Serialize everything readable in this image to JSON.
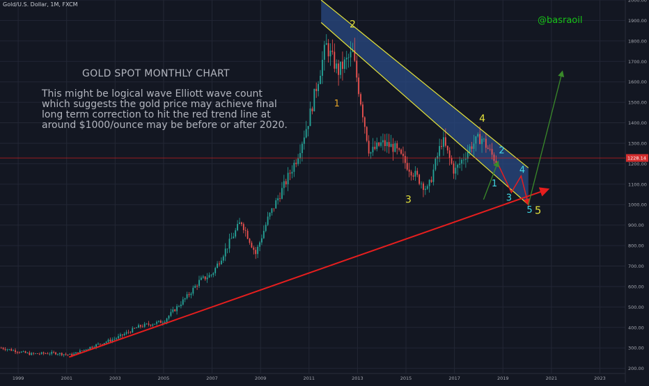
{
  "chart_data": {
    "type": "candlestick",
    "symbol_header": "Gold/U.S. Dollar, 1M, FXCM",
    "title": "GOLD SPOT MONTHLY CHART",
    "annotation_lines": [
      "This might be logical wave Elliott wave count",
      "which suggests the gold price may achieve final",
      "long term correction to hit the red trend line at",
      "around $1000/ounce may be before or after 2020."
    ],
    "watermark": "@basraoil",
    "x_ticks": [
      "1999",
      "2001",
      "2003",
      "2005",
      "2007",
      "2009",
      "2011",
      "2013",
      "2015",
      "2017",
      "2019",
      "2021",
      "2023"
    ],
    "x_tick_years": [
      1999,
      2001,
      2003,
      2005,
      2007,
      2009,
      2011,
      2013,
      2015,
      2017,
      2019,
      2021,
      2023
    ],
    "y_ticks": [
      "2000.00",
      "1900.00",
      "1800.00",
      "1700.00",
      "1600.00",
      "1500.00",
      "1400.00",
      "1300.00",
      "1200.00",
      "1100.00",
      "1000.00",
      "900.00",
      "800.00",
      "700.00",
      "600.00",
      "500.00",
      "400.00",
      "300.00",
      "200.00"
    ],
    "y_tick_values": [
      2000,
      1900,
      1800,
      1700,
      1600,
      1500,
      1400,
      1300,
      1200,
      1100,
      1000,
      900,
      800,
      700,
      600,
      500,
      400,
      300,
      200
    ],
    "ylim": [
      175,
      2000
    ],
    "xlim": [
      1998.25,
      2024.05
    ],
    "price_label": "1228.14",
    "price_value": 1228.14,
    "anchors": [
      {
        "year": 1998.3,
        "price": 300
      },
      {
        "year": 1999.5,
        "price": 270
      },
      {
        "year": 2000.5,
        "price": 275
      },
      {
        "year": 2001.2,
        "price": 265
      },
      {
        "year": 2002.0,
        "price": 305
      },
      {
        "year": 2003.0,
        "price": 345
      },
      {
        "year": 2004.0,
        "price": 405
      },
      {
        "year": 2005.0,
        "price": 430
      },
      {
        "year": 2006.0,
        "price": 555
      },
      {
        "year": 2006.5,
        "price": 630
      },
      {
        "year": 2007.0,
        "price": 660
      },
      {
        "year": 2008.2,
        "price": 920
      },
      {
        "year": 2008.8,
        "price": 760
      },
      {
        "year": 2009.3,
        "price": 930
      },
      {
        "year": 2010.0,
        "price": 1100
      },
      {
        "year": 2010.5,
        "price": 1230
      },
      {
        "year": 2011.0,
        "price": 1420
      },
      {
        "year": 2011.7,
        "price": 1780
      },
      {
        "year": 2012.2,
        "price": 1650
      },
      {
        "year": 2012.8,
        "price": 1740
      },
      {
        "year": 2013.5,
        "price": 1250
      },
      {
        "year": 2014.0,
        "price": 1300
      },
      {
        "year": 2014.5,
        "price": 1280
      },
      {
        "year": 2015.0,
        "price": 1200
      },
      {
        "year": 2015.9,
        "price": 1070
      },
      {
        "year": 2016.5,
        "price": 1320
      },
      {
        "year": 2017.0,
        "price": 1160
      },
      {
        "year": 2017.7,
        "price": 1290
      },
      {
        "year": 2018.1,
        "price": 1330
      },
      {
        "year": 2018.5,
        "price": 1250
      },
      {
        "year": 2018.75,
        "price": 1210
      }
    ],
    "red_trend_line": {
      "from": {
        "year": 2001.1,
        "price": 255
      },
      "to": {
        "year": 2020.85,
        "price": 1075
      }
    },
    "channel_upper": {
      "from": {
        "year": 2011.5,
        "price": 2000
      },
      "to": {
        "year": 2020.05,
        "price": 1180
      }
    },
    "channel_lower": {
      "from": {
        "year": 2011.5,
        "price": 1890
      },
      "to": {
        "year": 2020.05,
        "price": 1000
      }
    },
    "projection_red": [
      {
        "year": 2018.75,
        "price": 1210
      },
      {
        "year": 2019.35,
        "price": 1060
      },
      {
        "year": 2019.75,
        "price": 1140
      },
      {
        "year": 2020.05,
        "price": 1000
      }
    ],
    "projection_green_small": [
      {
        "year": 2018.2,
        "price": 1025
      },
      {
        "year": 2018.8,
        "price": 1210
      }
    ],
    "projection_green_large": [
      {
        "year": 2020.05,
        "price": 1000
      },
      {
        "year": 2021.45,
        "price": 1650
      }
    ],
    "wave_labels": [
      {
        "text": "2",
        "year": 2012.8,
        "price": 1865,
        "color": "#e3e13b",
        "size": 14
      },
      {
        "text": "1",
        "year": 2012.15,
        "price": 1480,
        "color": "#e6a52a",
        "size": 13
      },
      {
        "text": "3",
        "year": 2015.1,
        "price": 1010,
        "color": "#e3e13b",
        "size": 14
      },
      {
        "text": "4",
        "year": 2018.15,
        "price": 1405,
        "color": "#e3e13b",
        "size": 14
      },
      {
        "text": "5",
        "year": 2020.45,
        "price": 955,
        "color": "#e3e13b",
        "size": 15
      },
      {
        "text": "2",
        "year": 2018.95,
        "price": 1250,
        "color": "#40d9e6",
        "size": 13
      },
      {
        "text": "1",
        "year": 2018.65,
        "price": 1090,
        "color": "#40d9e6",
        "size": 13
      },
      {
        "text": "4",
        "year": 2019.8,
        "price": 1155,
        "color": "#40d9e6",
        "size": 13
      },
      {
        "text": "3",
        "year": 2019.25,
        "price": 1020,
        "color": "#40d9e6",
        "size": 13
      },
      {
        "text": "5",
        "year": 2020.1,
        "price": 960,
        "color": "#40d9e6",
        "size": 13
      }
    ],
    "colors": {
      "background": "#131722",
      "up": "#26a69a",
      "down": "#ef5350",
      "trend": "#e61e1e",
      "channel_border": "#e4e33a",
      "channel_fill": "#2a4b86",
      "projection_green": "#3a8a2a",
      "watermark": "#17c317",
      "text": "#b2b5be"
    }
  }
}
